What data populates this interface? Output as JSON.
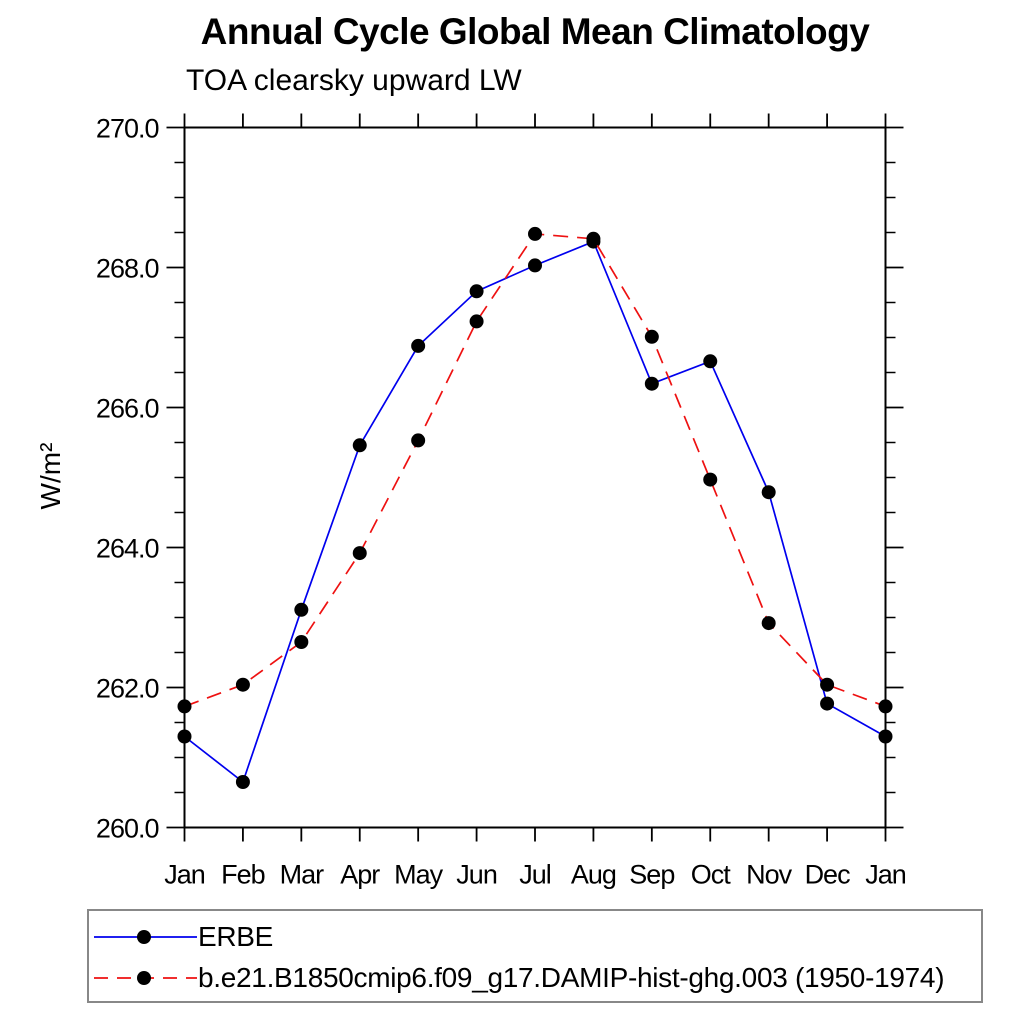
{
  "chart_data": {
    "type": "line",
    "title": "Annual Cycle Global Mean Climatology",
    "subtitle": "TOA clearsky upward LW",
    "ylabel": "W/m²",
    "xlabel": "",
    "categories": [
      "Jan",
      "Feb",
      "Mar",
      "Apr",
      "May",
      "Jun",
      "Jul",
      "Aug",
      "Sep",
      "Oct",
      "Nov",
      "Dec",
      "Jan"
    ],
    "ylim": [
      260.0,
      270.0
    ],
    "y_major_ticks": [
      260,
      262,
      264,
      266,
      268,
      270
    ],
    "y_tick_labels": [
      "260.0",
      "262.0",
      "264.0",
      "266.0",
      "268.0",
      "270.0"
    ],
    "y_minor_step": 0.5,
    "grid": false,
    "legend_position": "bottom-left-box",
    "marker": {
      "shape": "circle",
      "color": "#000000"
    },
    "axis_color": "#000000",
    "series": [
      {
        "name": "ERBE",
        "color": "#0000ee",
        "line_style": "solid",
        "values": [
          261.3,
          260.65,
          263.11,
          265.46,
          266.88,
          267.66,
          268.03,
          268.37,
          266.34,
          266.66,
          264.79,
          261.77,
          261.3
        ]
      },
      {
        "name": "b.e21.B1850cmip6.f09_g17.DAMIP-hist-ghg.003 (1950-1974)",
        "color": "#ee1111",
        "line_style": "dashed",
        "values": [
          261.73,
          262.04,
          262.65,
          263.92,
          265.53,
          267.23,
          268.48,
          268.41,
          267.01,
          264.97,
          262.92,
          262.04,
          261.73
        ]
      }
    ]
  }
}
